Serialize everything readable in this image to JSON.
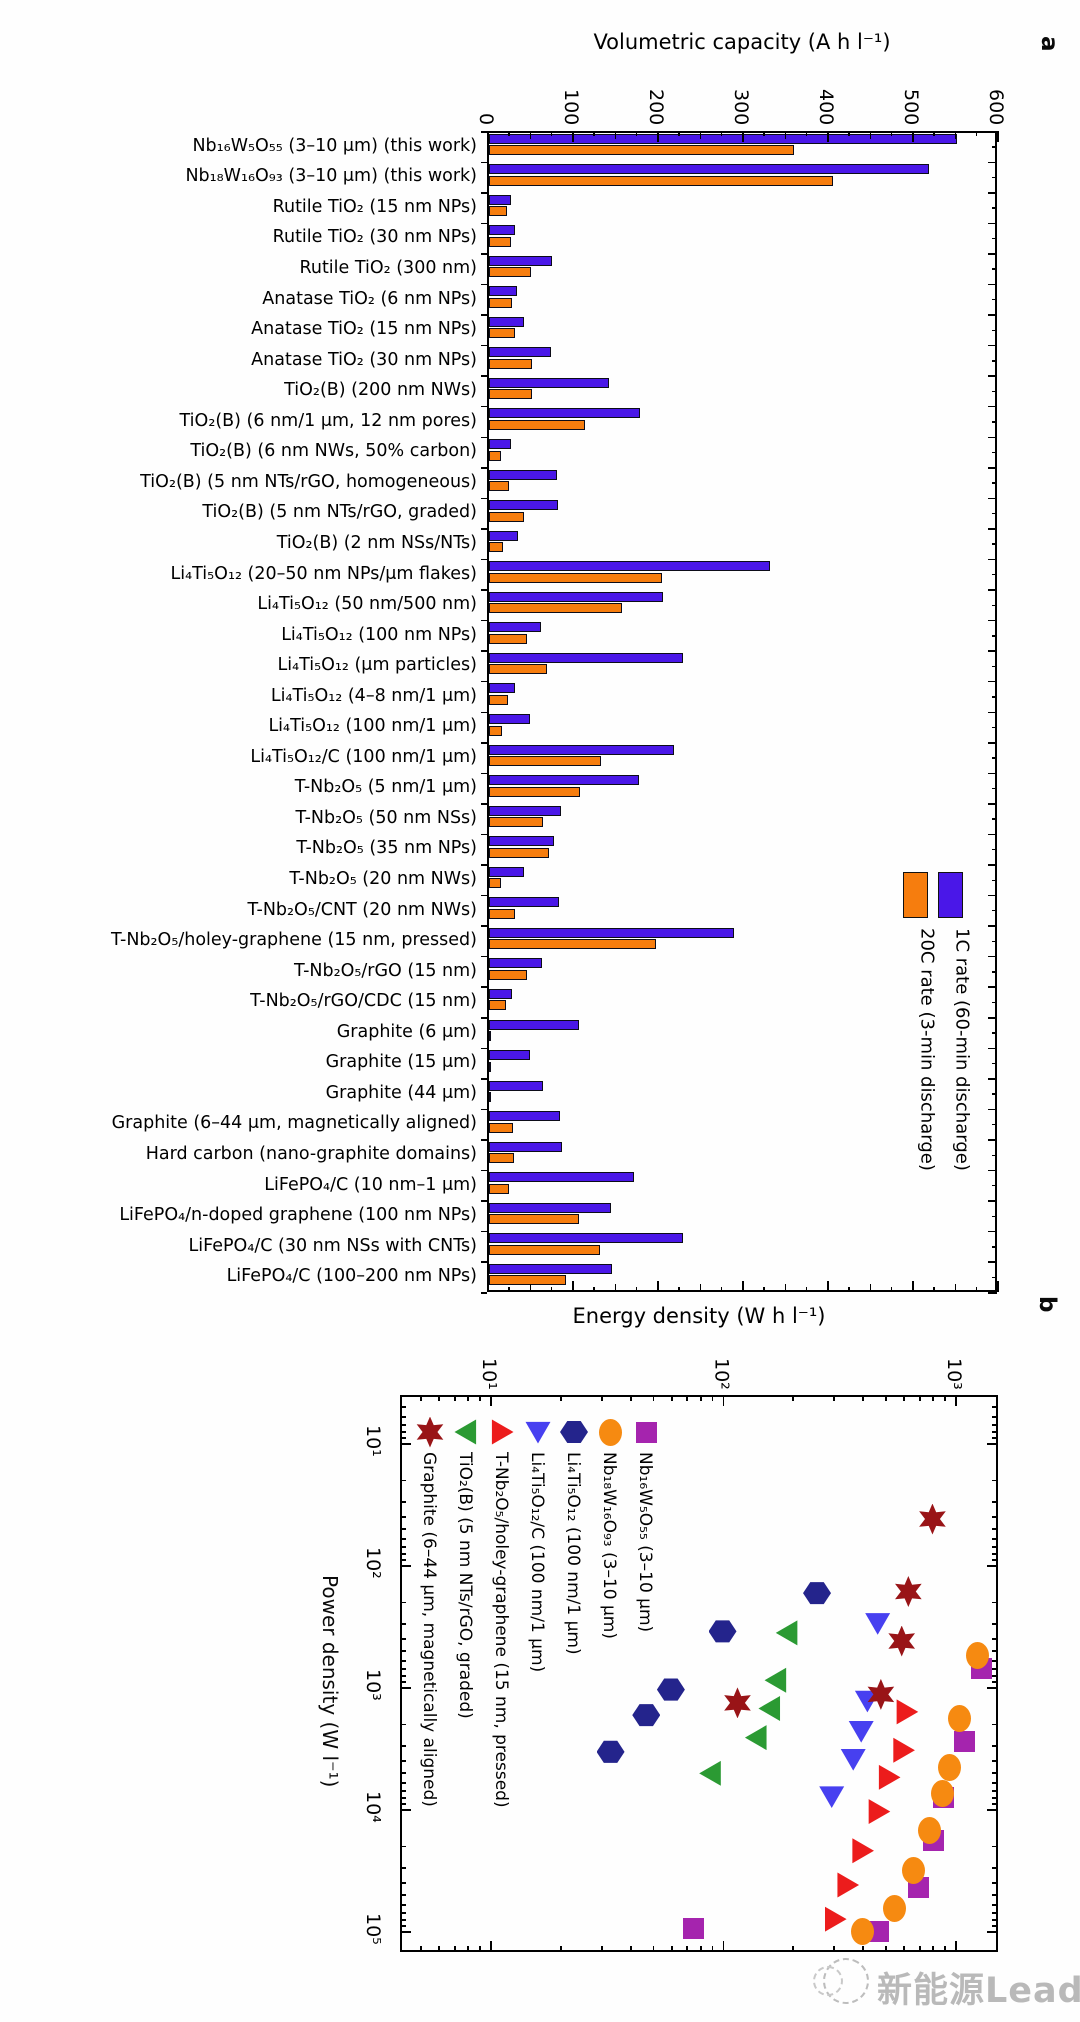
{
  "figure": {
    "panel_a": {
      "label": "a",
      "title": "Volumetric capacity (A h l⁻¹)",
      "tick_labels": [
        "0",
        "100",
        "200",
        "300",
        "400",
        "500",
        "600"
      ],
      "legend": [
        {
          "label": "1C rate (60-min discharge)",
          "color": "#4A17E8"
        },
        {
          "label": "20C rate (3-min discharge)",
          "color": "#F67D0E"
        }
      ]
    },
    "panel_b": {
      "label": "b",
      "x_title": "Energy density (W h l⁻¹)",
      "x_tick_labels": [
        "10¹",
        "10²",
        "10³"
      ],
      "y_title": "Power density (W l⁻¹)",
      "y_tick_labels": [
        "10¹",
        "10²",
        "10³",
        "10⁴",
        "10⁵"
      ]
    },
    "watermark": {
      "text": "新能源Leader"
    }
  },
  "chart_data": [
    {
      "type": "bar",
      "orientation": "horizontal",
      "title": "Volumetric capacity (A h l⁻¹)",
      "xlabel": "Volumetric capacity (A h l⁻¹)",
      "ylabel": "",
      "xlim": [
        0,
        600
      ],
      "grid": false,
      "legend_position": "right-middle",
      "categories": [
        "Nb₁₆W₅O₅₅ (3–10 μm) (this work)",
        "Nb₁₈W₁₆O₉₃ (3–10 μm) (this work)",
        "Rutile TiO₂ (15 nm NPs)",
        "Rutile TiO₂ (30 nm NPs)",
        "Rutile TiO₂ (300 nm)",
        "Anatase TiO₂ (6 nm NPs)",
        "Anatase TiO₂ (15 nm NPs)",
        "Anatase TiO₂ (30 nm NPs)",
        "TiO₂(B) (200 nm NWs)",
        "TiO₂(B) (6 nm/1 μm, 12 nm pores)",
        "TiO₂(B) (6 nm NWs, 50% carbon)",
        "TiO₂(B) (5 nm NTs/rGO, homogeneous)",
        "TiO₂(B) (5 nm NTs/rGO, graded)",
        "TiO₂(B) (2 nm NSs/NTs)",
        "Li₄Ti₅O₁₂ (20–50 nm NPs/μm flakes)",
        "Li₄Ti₅O₁₂ (50 nm/500 nm)",
        "Li₄Ti₅O₁₂ (100 nm NPs)",
        "Li₄Ti₅O₁₂ (μm particles)",
        "Li₄Ti₅O₁₂ (4–8 nm/1 μm)",
        "Li₄Ti₅O₁₂ (100 nm/1 μm)",
        "Li₄Ti₅O₁₂/C (100 nm/1 μm)",
        "T-Nb₂O₅ (5 nm/1 μm)",
        "T-Nb₂O₅ (50 nm NSs)",
        "T-Nb₂O₅ (35 nm NPs)",
        "T-Nb₂O₅ (20 nm NWs)",
        "T-Nb₂O₅/CNT (20 nm NWs)",
        "T-Nb₂O₅/holey-graphene (15 nm, pressed)",
        "T-Nb₂O₅/rGO (15 nm)",
        "T-Nb₂O₅/rGO/CDC (15 nm)",
        "Graphite (6 μm)",
        "Graphite (15 μm)",
        "Graphite (44 μm)",
        "Graphite (6–44 μm, magnetically aligned)",
        "Hard carbon (nano-graphite domains)",
        "LiFePO₄/C (10 nm–1 μm)",
        "LiFePO₄/n-doped graphene (100 nm NPs)",
        "LiFePO₄/C (30 nm NSs with CNTs)",
        "LiFePO₄/C (100–200 nm NPs)"
      ],
      "series": [
        {
          "name": "1C rate (60-min discharge)",
          "color": "#4A17E8",
          "values": [
            550,
            518,
            26,
            30,
            74,
            33,
            41,
            73,
            141,
            178,
            26,
            80,
            81,
            34,
            331,
            205,
            61,
            228,
            30,
            48,
            218,
            177,
            85,
            77,
            41,
            82,
            288,
            62,
            27,
            106,
            48,
            63,
            84,
            86,
            170,
            143,
            228,
            145
          ]
        },
        {
          "name": "20C rate (3-min discharge)",
          "color": "#F67D0E",
          "values": [
            359,
            405,
            21,
            26,
            49,
            27,
            30,
            51,
            50,
            113,
            14,
            23,
            41,
            17,
            203,
            157,
            45,
            68,
            22,
            15,
            132,
            107,
            64,
            70,
            14,
            31,
            197,
            45,
            20,
            2,
            2,
            2,
            28,
            29,
            23,
            106,
            130,
            90
          ]
        }
      ]
    },
    {
      "type": "scatter",
      "xlabel": "Energy density (W h l⁻¹)",
      "ylabel": "Power density (W l⁻¹)",
      "xscale": "log",
      "yscale": "log",
      "xlim": [
        4,
        1500
      ],
      "ylim": [
        4,
        150000
      ],
      "grid": false,
      "legend_position": "top-left-inside",
      "series": [
        {
          "name": "Nb₁₆W₅O₅₅ (3–10 μm)",
          "marker": "square",
          "color": "#A524AE",
          "points": [
            [
              1300,
              700
            ],
            [
              1100,
              2800
            ],
            [
              890,
              8000
            ],
            [
              810,
              18000
            ],
            [
              700,
              44000
            ],
            [
              470,
              100000
            ],
            [
              75,
              95000
            ]
          ]
        },
        {
          "name": "Nb₁₈W₁₆O₉₃ (3–10 μm)",
          "marker": "circle",
          "color": "#F68A11",
          "points": [
            [
              1250,
              550
            ],
            [
              1050,
              1800
            ],
            [
              950,
              4600
            ],
            [
              880,
              7500
            ],
            [
              780,
              15000
            ],
            [
              660,
              32000
            ],
            [
              550,
              66000
            ],
            [
              400,
              100000
            ]
          ]
        },
        {
          "name": "Li₄Ti₅O₁₂ (100 nm/1 μm)",
          "marker": "hexagon",
          "color": "#24248C",
          "points": [
            [
              255,
              170
            ],
            [
              100,
              350
            ],
            [
              60,
              1050
            ],
            [
              47,
              1700
            ],
            [
              33,
              3400
            ]
          ]
        },
        {
          "name": "Li₄Ti₅O₁₂/C (100 nm/1 μm)",
          "marker": "triangle-down",
          "color": "#4740F0",
          "points": [
            [
              465,
              300
            ],
            [
              420,
              1300
            ],
            [
              395,
              2300
            ],
            [
              365,
              3900
            ],
            [
              295,
              7900
            ]
          ]
        },
        {
          "name": "T-Nb₂O₅/holey-graphene (15 nm, pressed)",
          "marker": "triangle-right",
          "color": "#EC1C1C",
          "points": [
            [
              620,
              1600
            ],
            [
              600,
              3300
            ],
            [
              520,
              5500
            ],
            [
              470,
              10500
            ],
            [
              400,
              22000
            ],
            [
              345,
              42000
            ],
            [
              305,
              80000
            ]
          ]
        },
        {
          "name": "TiO₂(B) (5 nm NTs/rGO, graded)",
          "marker": "triangle-left",
          "color": "#2B9A33",
          "points": [
            [
              190,
              360
            ],
            [
              170,
              880
            ],
            [
              160,
              1500
            ],
            [
              140,
              2600
            ],
            [
              89,
              5100
            ]
          ]
        },
        {
          "name": "Graphite (6–44 μm, magnetically aligned)",
          "marker": "star",
          "color": "#991417",
          "points": [
            [
              800,
              42
            ],
            [
              630,
              165
            ],
            [
              590,
              420
            ],
            [
              480,
              1150
            ],
            [
              116,
              1350
            ]
          ]
        }
      ]
    }
  ]
}
